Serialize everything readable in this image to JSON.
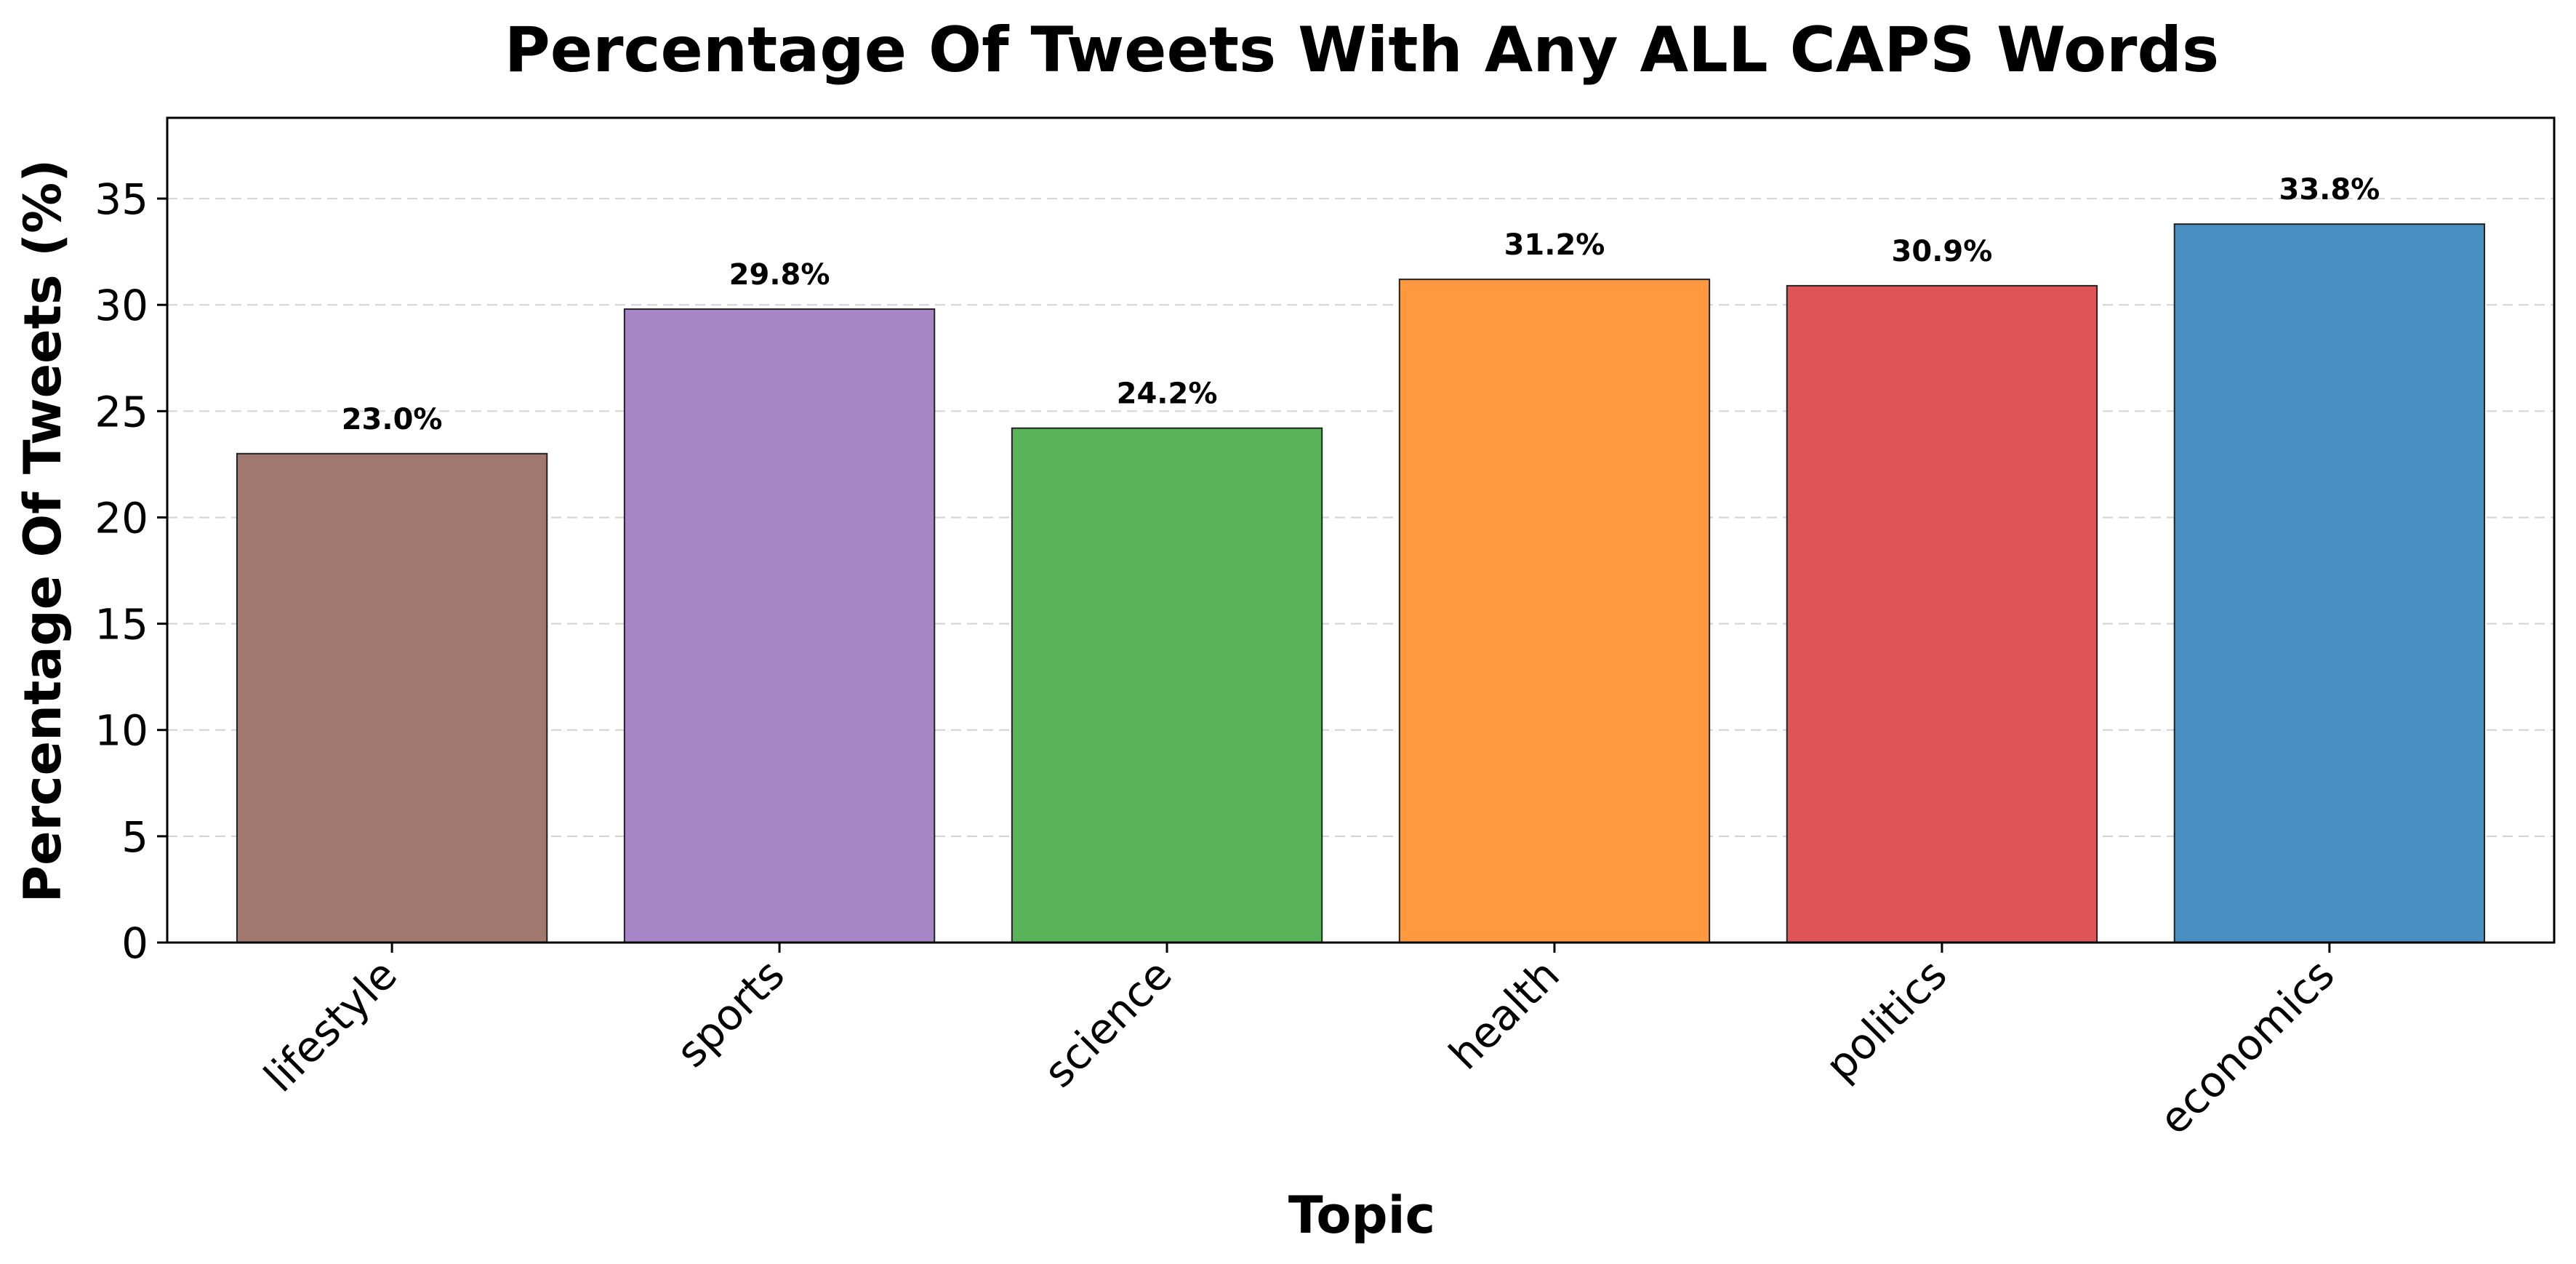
{
  "chart_data": {
    "type": "bar",
    "title": "Percentage Of Tweets With Any ALL CAPS Words",
    "xlabel": "Topic",
    "ylabel": "Percentage Of Tweets (%)",
    "categories": [
      "lifestyle",
      "sports",
      "science",
      "health",
      "politics",
      "economics"
    ],
    "values": [
      23.0,
      29.8,
      24.2,
      31.2,
      30.9,
      33.8
    ],
    "data_labels": [
      "23.0%",
      "29.8%",
      "24.2%",
      "31.2%",
      "30.9%",
      "33.8%"
    ],
    "colors": [
      "#A1786E",
      "#A786C7",
      "#59B459",
      "#FF983F",
      "#DE5457",
      "#4A8FC2"
    ],
    "ylim": [
      0,
      38.8
    ],
    "yticks": [
      0,
      5,
      10,
      15,
      20,
      25,
      30,
      35
    ],
    "ytick_labels": [
      "0",
      "5",
      "10",
      "15",
      "20",
      "25",
      "30",
      "35"
    ],
    "grid": "horizontal-dashed",
    "legend": "none"
  }
}
